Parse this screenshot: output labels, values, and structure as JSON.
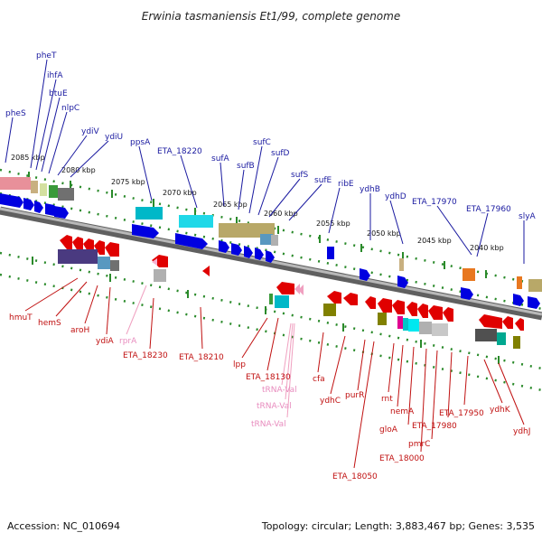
{
  "title": "Erwinia tasmaniensis Et1/99, complete genome",
  "footer": {
    "accession": "Accession: NC_010694",
    "summary": "Topology: circular; Length: 3,883,467 bp; Genes: 3,535"
  },
  "colors": {
    "top_label": "#1a1aa0",
    "bottom_label": "#c01010",
    "rna_label": "#e88cbe",
    "tick": "#2a8a2a",
    "backbone": "#808080"
  },
  "kbp_labels": [
    "2085 kbp",
    "2080 kbp",
    "2075 kbp",
    "2070 kbp",
    "2065 kbp",
    "2060 kbp",
    "2055 kbp",
    "2050 kbp",
    "2045 kbp",
    "2040 kbp"
  ],
  "top_genes": [
    "pheS",
    "pheT",
    "ihfA",
    "btuE",
    "nlpC",
    "ydiV",
    "ydiU",
    "ppsA",
    "ETA_18220",
    "sufA",
    "sufB",
    "sufC",
    "sufD",
    "sufS",
    "sufE",
    "ribE",
    "ydhB",
    "ydhD",
    "ETA_17970",
    "ETA_17960",
    "slyA"
  ],
  "bottom_genes": [
    "hmuT",
    "hemS",
    "aroH",
    "ydiA",
    "ETA_18230",
    "ETA_18210",
    "lpp",
    "ETA_18130",
    "cfa",
    "ydhC",
    "purR",
    "rnt",
    "nemA",
    "gloA",
    "ETA_18000",
    "pmrC",
    "ETA_17980",
    "ETA_17950",
    "ETA_18050",
    "ydhK",
    "ydhJ"
  ],
  "rna_genes": [
    "rprA",
    "tRNA-Val",
    "tRNA-Val",
    "tRNA-Val"
  ]
}
